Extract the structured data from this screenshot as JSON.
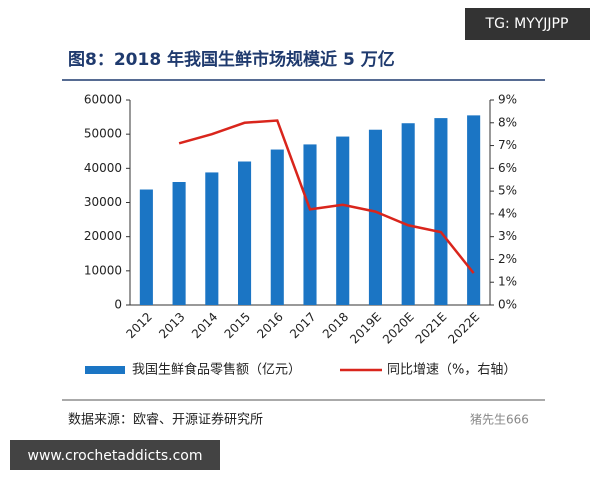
{
  "chart_data": {
    "type": "combo",
    "title": "图8：2018 年我国生鲜市场规模近 5 万亿",
    "categories": [
      "2012",
      "2013",
      "2014",
      "2015",
      "2016",
      "2017",
      "2018",
      "2019E",
      "2020E",
      "2021E",
      "2022E"
    ],
    "series": [
      {
        "name": "我国生鲜食品零售额（亿元）",
        "type": "bar",
        "color": "#1b75c4",
        "values": [
          33800,
          36000,
          38800,
          42000,
          45500,
          47000,
          49300,
          51300,
          53200,
          54700,
          55500
        ]
      },
      {
        "name": "同比增速（%，右轴）",
        "type": "line",
        "axis": "y2",
        "color": "#d9251c",
        "values": [
          null,
          7.1,
          7.5,
          8.0,
          8.1,
          4.2,
          4.4,
          4.1,
          3.5,
          3.2,
          1.4
        ]
      }
    ],
    "ylim": [
      0,
      60000
    ],
    "yticks": [
      0,
      10000,
      20000,
      30000,
      40000,
      50000,
      60000
    ],
    "y2lim": [
      0,
      9
    ],
    "y2ticks": [
      {
        "value": 0,
        "label": "0%"
      },
      {
        "value": 1,
        "label": "1%"
      },
      {
        "value": 2,
        "label": "2%"
      },
      {
        "value": 3,
        "label": "3%"
      },
      {
        "value": 4,
        "label": "4%"
      },
      {
        "value": 5,
        "label": "5%"
      },
      {
        "value": 6,
        "label": "6%"
      },
      {
        "value": 7,
        "label": "7%"
      },
      {
        "value": 8,
        "label": "8%"
      },
      {
        "value": 9,
        "label": "9%"
      }
    ],
    "grid": false,
    "source": "数据来源：欧睿、开源证券研究所",
    "watermark": "猪先生666",
    "corner_tags": [
      "TG: MYYJJPP",
      "www.crochetaddicts.com"
    ]
  }
}
